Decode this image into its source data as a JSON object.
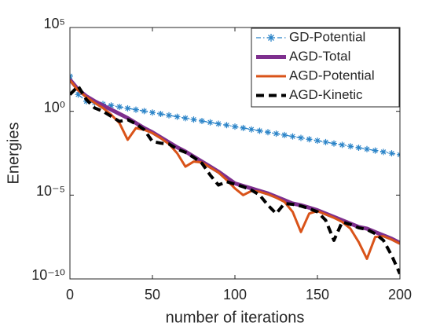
{
  "chart_data": {
    "type": "line",
    "log_y": true,
    "xlabel": "number of iterations",
    "ylabel": "Energies",
    "x": [
      0,
      5,
      10,
      15,
      20,
      25,
      30,
      35,
      40,
      45,
      50,
      55,
      60,
      65,
      70,
      75,
      80,
      85,
      90,
      95,
      100,
      105,
      110,
      115,
      120,
      125,
      130,
      135,
      140,
      145,
      150,
      155,
      160,
      165,
      170,
      175,
      180,
      185,
      190,
      195,
      200
    ],
    "xlim": [
      0,
      200
    ],
    "xticks": [
      0,
      50,
      100,
      150,
      200
    ],
    "ylim": [
      1e-10,
      100000
    ],
    "yticks": [
      {
        "value": 1e-10,
        "label": "10⁻¹⁰"
      },
      {
        "value": 1e-05,
        "label": "10⁻⁵"
      },
      {
        "value": 1,
        "label": "10⁰"
      },
      {
        "value": 100000,
        "label": "10⁵"
      }
    ],
    "legend": "top-right",
    "series": [
      {
        "name": "GD-Potential",
        "color": "#2b84c8",
        "style": "dash-dot-star",
        "values": [
          126,
          10,
          3.98,
          3.28,
          2.7,
          2.23,
          1.84,
          1.51,
          1.25,
          1.03,
          0.847,
          0.698,
          0.575,
          0.474,
          0.391,
          0.322,
          0.265,
          0.219,
          0.18,
          0.149,
          0.122,
          0.101,
          0.0832,
          0.0686,
          0.0565,
          0.0466,
          0.0384,
          0.0316,
          0.0261,
          0.0215,
          0.0177,
          0.0146,
          0.012,
          0.00991,
          0.00817,
          0.00673,
          0.00555,
          0.00457,
          0.00377,
          0.0031,
          0.00256
        ]
      },
      {
        "name": "AGD-Total",
        "color": "#7e2f8e",
        "style": "solid-thick",
        "values": [
          79,
          20,
          7.9,
          4.0,
          2.24,
          1.26,
          0.708,
          0.398,
          0.2,
          0.1,
          0.0562,
          0.0282,
          0.0141,
          0.00708,
          0.00398,
          0.002,
          0.001,
          0.000501,
          0.000251,
          0.000112,
          5.01e-05,
          3.55e-05,
          2.51e-05,
          1.78e-05,
          1.26e-05,
          7.94e-06,
          5.01e-06,
          3.16e-06,
          2.51e-06,
          1.78e-06,
          1.26e-06,
          7.94e-07,
          5.01e-07,
          3.16e-07,
          2e-07,
          1.26e-07,
          1e-07,
          6.31e-08,
          3.98e-08,
          2.51e-08,
          1.41e-08
        ]
      },
      {
        "name": "AGD-Potential",
        "color": "#d95319",
        "style": "solid",
        "values": [
          70.8,
          17.8,
          7.08,
          3.16,
          1.58,
          0.631,
          0.2,
          0.02,
          0.1,
          0.0794,
          0.0501,
          0.0251,
          0.0112,
          0.00316,
          0.000501,
          0.001,
          0.000891,
          0.000447,
          0.000224,
          7.94e-05,
          2.51e-05,
          1e-05,
          1.78e-05,
          1.58e-05,
          1.12e-05,
          7.08e-06,
          3.98e-06,
          1e-06,
          6.31e-08,
          7.94e-07,
          1.12e-06,
          7.08e-07,
          4.47e-07,
          2.51e-07,
          1e-07,
          1.58e-08,
          1.58e-09,
          3.16e-08,
          3.55e-08,
          2.24e-08,
          1.26e-08
        ]
      },
      {
        "name": "AGD-Kinetic",
        "color": "#000000",
        "style": "dashed",
        "values": [
          10,
          31.6,
          5.01,
          1.58,
          1,
          0.501,
          0.251,
          0.316,
          0.178,
          0.0794,
          0.0158,
          0.0126,
          0.0112,
          0.00562,
          0.00355,
          0.00178,
          0.000794,
          0.000158,
          3.98e-05,
          6.31e-05,
          4.47e-05,
          3.16e-05,
          2e-05,
          1e-05,
          2.51e-06,
          7.94e-07,
          3.16e-06,
          2.82e-06,
          2.24e-06,
          1.58e-06,
          1e-06,
          3.16e-07,
          2e-08,
          2.51e-07,
          1.78e-07,
          1.12e-07,
          8.91e-08,
          5.01e-08,
          2e-08,
          2.51e-09,
          2e-10
        ]
      }
    ]
  }
}
